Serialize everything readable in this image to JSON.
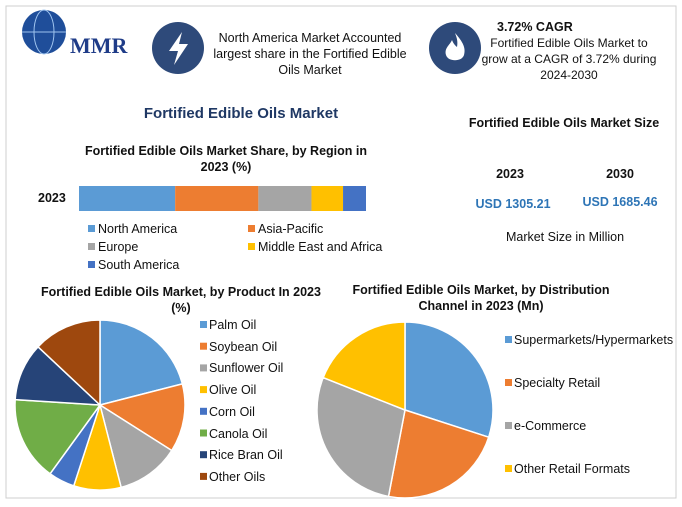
{
  "header": {
    "logo": "MMR",
    "callout1": "North America Market Accounted largest share in the Fortified Edible Oils Market",
    "callout2_title": "3.72% CAGR",
    "callout2": "Fortified Edible Oils Market to grow at a CAGR of 3.72% during 2024-2030"
  },
  "title": "Fortified Edible Oils Market",
  "market_size": {
    "title": "Fortified Edible Oils Market Size",
    "years": [
      "2023",
      "2030"
    ],
    "values": [
      "USD 1305.21",
      "USD 1685.46"
    ],
    "note": "Market Size in Million"
  },
  "chart_data": [
    {
      "type": "stacked_bar",
      "title": "Fortified Edible Oils Market Share, by Region in 2023 (%)",
      "categories": [
        "2023"
      ],
      "series": [
        {
          "name": "North America",
          "color": "#5b9bd5",
          "values": [
            33.5
          ]
        },
        {
          "name": "Asia-Pacific",
          "color": "#ed7d31",
          "values": [
            29
          ]
        },
        {
          "name": "Europe",
          "color": "#a5a5a5",
          "values": [
            18.5
          ]
        },
        {
          "name": "Middle East and Africa",
          "color": "#ffc000",
          "values": [
            11
          ]
        },
        {
          "name": "South America",
          "color": "#4472c4",
          "values": [
            8
          ]
        }
      ]
    },
    {
      "type": "pie",
      "title": "Fortified Edible Oils Market, by Product In 2023 (%)",
      "categories": [
        "Palm Oil",
        "Soybean Oil",
        "Sunflower Oil",
        "Olive Oil",
        "Corn Oil",
        "Canola Oil",
        "Rice Bran Oil",
        "Other Oils"
      ],
      "values": [
        21,
        13,
        12,
        9,
        5,
        16,
        11,
        13
      ],
      "colors": [
        "#5b9bd5",
        "#ed7d31",
        "#a5a5a5",
        "#ffc000",
        "#4472c4",
        "#70ad47",
        "#264478",
        "#9e480e"
      ]
    },
    {
      "type": "pie",
      "title": "Fortified Edible Oils Market, by Distribution Channel in 2023 (Mn)",
      "categories": [
        "Supermarkets/Hypermarkets",
        "Specialty Retail",
        "e-Commerce",
        "Other Retail Formats"
      ],
      "values": [
        30,
        23,
        28,
        19
      ],
      "colors": [
        "#5b9bd5",
        "#ed7d31",
        "#a5a5a5",
        "#ffc000"
      ]
    }
  ]
}
